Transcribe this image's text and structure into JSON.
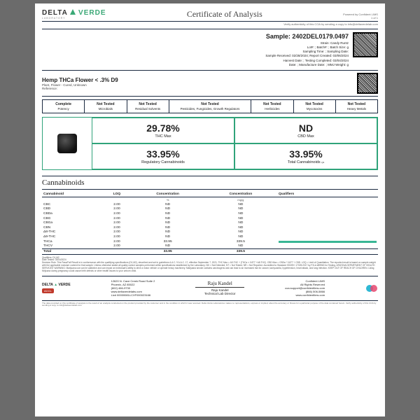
{
  "header": {
    "brand1": "DELTA",
    "brand2": "VERDE",
    "brand_sub": "LABORATORY",
    "title": "Certificate of Analysis",
    "powered": "Powered by Confident LIMS",
    "page": "1 of 1",
    "verify": "Verify authenticity of this COA by sending a copy to info@deltaverdelab.com"
  },
  "sample": {
    "id_label": "Sample:",
    "id": "2402DEL0179.0497",
    "strain": "Strain: Candy Runtz",
    "lot": "Lot#: ; Batch#: ; Batch Size:  g",
    "sampling": "Sampling Time: ; Sampling Date:",
    "received": "Sample Received: 02/28/2024; Report Created: 03/06/2024",
    "harvest": "Harvest Date: ; Testing Completed: 03/04/2024",
    "mfg": "Date: ; Manufacture Date: ; MMJ Weight: g"
  },
  "product": {
    "name": "Hemp THCa Flower < .3% D9",
    "desc": "Plant, Flower - Cured, Unknown",
    "ref": "Reference:"
  },
  "tests": [
    {
      "t": "Complete",
      "s": "Potency"
    },
    {
      "t": "Not Tested",
      "s": "Microbials"
    },
    {
      "t": "Not Tested",
      "s": "Residual Solvents"
    },
    {
      "t": "Not Tested",
      "s": "Pesticides, Fungicides, Growth Regulators",
      "w": true
    },
    {
      "t": "Not Tested",
      "s": "Herbicides"
    },
    {
      "t": "Not Tested",
      "s": "Mycotoxins"
    },
    {
      "t": "Not Tested",
      "s": "Heavy Metals"
    }
  ],
  "metrics": [
    {
      "v": "29.78%",
      "l": "THC Max"
    },
    {
      "v": "ND",
      "l": "CBD Max"
    },
    {
      "v": "33.95%",
      "l": "Regulatory Cannabinoids"
    },
    {
      "v": "33.95%",
      "l": "Total Cannabinoids",
      "q": "Q3"
    }
  ],
  "section": "Cannabinoids",
  "cann": {
    "cols": [
      "Cannabinoid",
      "LOQ",
      "Concentration",
      "Concentration",
      "Qualifiers"
    ],
    "units": [
      "",
      "",
      "%",
      "mg/g",
      ""
    ],
    "rows": [
      {
        "n": "CBC",
        "loq": "2.00",
        "c1": "ND",
        "c2": "ND",
        "b": 0
      },
      {
        "n": "CBD",
        "loq": "2.00",
        "c1": "ND",
        "c2": "ND",
        "b": 0
      },
      {
        "n": "CBDa",
        "loq": "2.00",
        "c1": "ND",
        "c2": "ND",
        "b": 0
      },
      {
        "n": "CBG",
        "loq": "2.00",
        "c1": "ND",
        "c2": "ND",
        "b": 0
      },
      {
        "n": "CBGa",
        "loq": "2.00",
        "c1": "ND",
        "c2": "ND",
        "b": 0
      },
      {
        "n": "CBN",
        "loq": "2.00",
        "c1": "ND",
        "c2": "ND",
        "b": 0
      },
      {
        "n": "Δ8-THC",
        "loq": "2.00",
        "c1": "ND",
        "c2": "ND",
        "b": 0
      },
      {
        "n": "Δ9-THC",
        "loq": "2.00",
        "c1": "ND",
        "c2": "ND",
        "b": 0
      },
      {
        "n": "THCa",
        "loq": "2.00",
        "c1": "33.95",
        "c2": "339.5",
        "b": 100
      },
      {
        "n": "THCV",
        "loq": "2.00",
        "c1": "ND",
        "c2": "ND",
        "b": 0
      }
    ],
    "total": {
      "n": "Total",
      "c1": "33.95",
      "c2": "339.5"
    }
  },
  "qual": {
    "q": "Qualifiers: D1,M2",
    "d": "Date Tested: 03/04/2024",
    "rule": "Decision Rule: This Pass/Fail Result is in conformance with the qualifying specifications (D1,M2), described and set in guidelines A.A.C. 9 A.A.C. 17, effective September 7, 2021. THC Max = Δ9-THC + (THCa × 0.877 +Δ8-THC). CBD Max = CBDa * 0.877 + CBD. LOQ = Limit of Quantitation. The reported result is based on sample weight with the applicable moisture content for that sample. Unless otherwise stated all quality control samples performed within specifications established by the Laboratory. ND = Not Detected; NT = Not Tested; NR = Not Reported. Accredited to Standard ISO/IEC 17025:2017 by PJLA #89963 for Testing. ARIZONA DEPARTMENT OF HEALTH SERVICES' WARNING: Marijuana use can be addictive and can impair an individual's ability to drive a motor vehicle or operate heavy machinery. Marijuana smoke contains carcinogens and can lead to an increased risk for cancer, tachycardia, hypertension, heart attack, and lung infection. KEEP OUT OF REACH OF CHILDREN. Using Mrijuana during pregnancy could cause birth defects or other health issues to your unborn child."
  },
  "footer": {
    "addr1": "12620 N. Cave Creek Road Suite 2",
    "addr2": "Phoenix, AZ 85022",
    "phone": "(602) 466-9730",
    "web": "www.deltaverdelabs.com",
    "lic": "Lic# 00000081LCXF000023166",
    "accl": "ACCL",
    "sig_name": "Raju Kandel",
    "sig_title": "Technical Lab Director",
    "r1": "Confident LIMS",
    "r2": "All Rights Reserved",
    "r3": "coa.support@confidentlims.com",
    "r4": "(866) 506-5866",
    "r5": "www.confidentlims.com"
  },
  "disclaimer": "The data provided on this certificate of analysis is the result of an analysis conducted on the product provided by the customer and in the condition in which it was received. Delta Verde Laboratories makes no representations, express or implied, about the accuracy or fitness for a particular purpose of the data contained herein. Verify authenticity of this COA by sending a copy to info@deltaverdelab.com",
  "colors": {
    "accent": "#2fa37a",
    "navy": "#1a2940",
    "bar": "#3ab795"
  }
}
